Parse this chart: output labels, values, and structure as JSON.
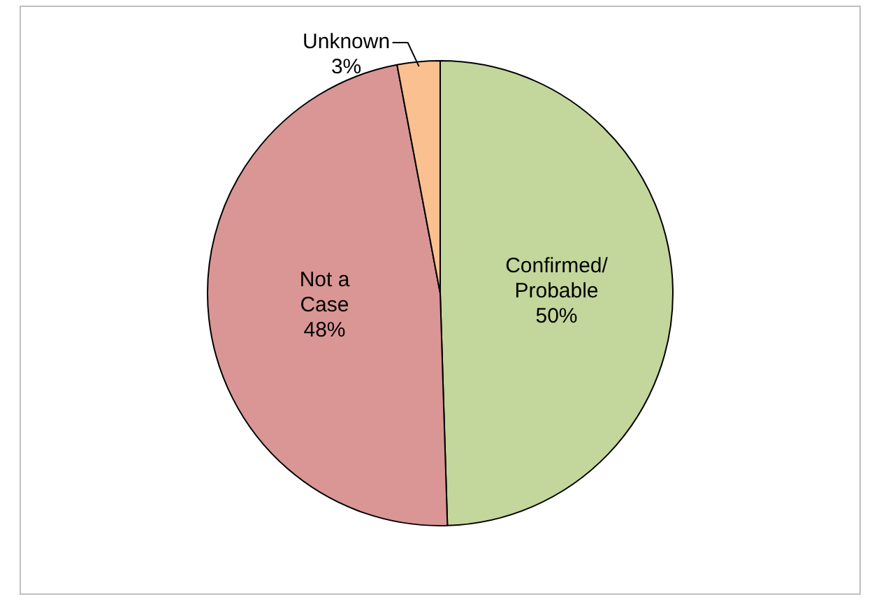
{
  "chart_data": {
    "type": "pie",
    "categories": [
      "Confirmed/ Probable",
      "Not a Case",
      "Unknown"
    ],
    "values": [
      50,
      48,
      3
    ],
    "colors": [
      "#c3d69b",
      "#d99694",
      "#fac090"
    ],
    "value_labels": [
      "50%",
      "48%",
      "3%"
    ],
    "legend": false
  }
}
